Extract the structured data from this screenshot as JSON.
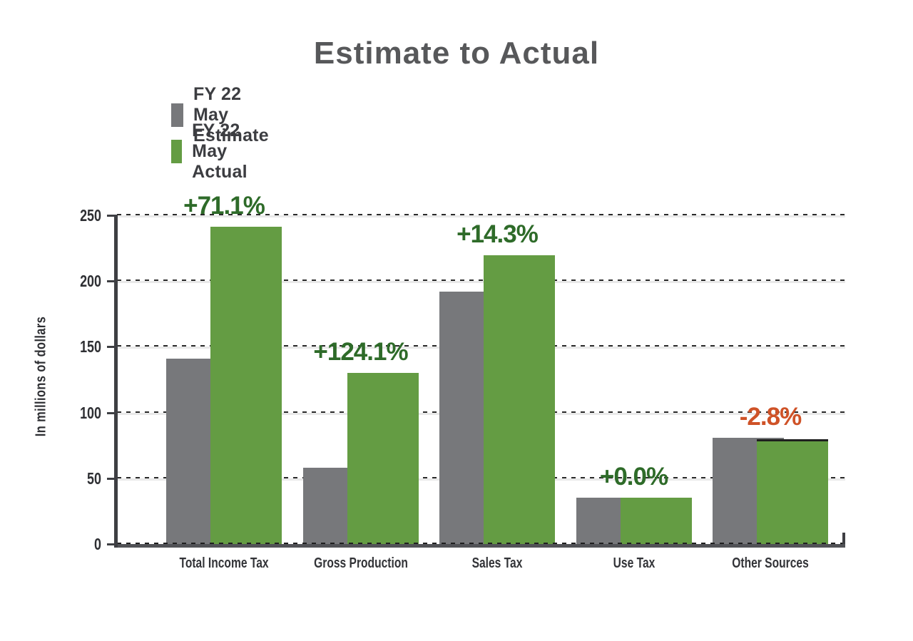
{
  "title": "Estimate to Actual",
  "legend": {
    "items": [
      {
        "label": "FY 22 May Estimate",
        "color": "#77787b"
      },
      {
        "label": "FY 22 May Actual",
        "color": "#649c43"
      }
    ]
  },
  "colors": {
    "estimate_bar": "#77787b",
    "actual_bar": "#649c43",
    "positive_annotation": "#2e6b29",
    "negative_annotation": "#cf5227",
    "title_text": "#57585a",
    "axis_line": "#3e3f43",
    "gridline_band": "#e9e9e9"
  },
  "chart_data": {
    "type": "bar",
    "title": "Estimate to Actual",
    "xlabel": "",
    "ylabel": "In millions of dollars",
    "ylim": [
      0,
      250
    ],
    "yticks": [
      0,
      50,
      100,
      150,
      200,
      250
    ],
    "grid": true,
    "legend_position": "top-left",
    "categories": [
      "Total Income Tax",
      "Gross Production",
      "Sales Tax",
      "Use Tax",
      "Other Sources"
    ],
    "series": [
      {
        "name": "FY 22 May Estimate",
        "color": "#77787b",
        "values": [
          141,
          58.1,
          192,
          35,
          80.6
        ]
      },
      {
        "name": "FY 22 May Actual",
        "color": "#649c43",
        "values": [
          241.2,
          130.3,
          219.5,
          35,
          78.3
        ]
      }
    ],
    "annotations": [
      {
        "category": "Total Income Tax",
        "text": "+71.1%",
        "color": "#2e6b29"
      },
      {
        "category": "Gross Production",
        "text": "+124.1%",
        "color": "#2e6b29"
      },
      {
        "category": "Sales Tax",
        "text": "+14.3%",
        "color": "#2e6b29"
      },
      {
        "category": "Use Tax",
        "text": "+0.0%",
        "color": "#2e6b29"
      },
      {
        "category": "Other Sources",
        "text": "-2.8%",
        "color": "#cf5227"
      }
    ]
  }
}
